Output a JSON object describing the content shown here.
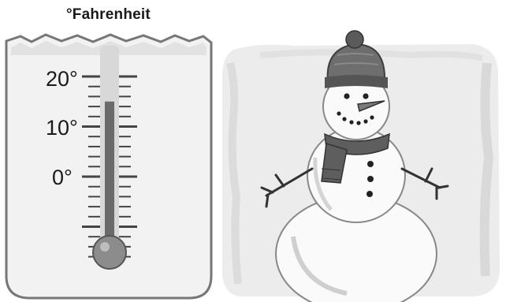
{
  "thermometer": {
    "unit_label": "°Fahrenheit",
    "scale_labels": [
      "20°",
      "10°",
      "0°"
    ],
    "scale_values": [
      20,
      10,
      0
    ],
    "reading": 15,
    "colors": {
      "card_fill": "#f2f2f2",
      "card_stroke": "#777777",
      "tube": "#d8d8d8",
      "mercury": "#6a6a6a",
      "bulb": "#8c8c8c"
    }
  },
  "snowman": {
    "icon": "snowman-in-snowy-scene",
    "colors": {
      "background": "#ececec",
      "hat": "#6e6e6e",
      "scarf": "#5e5e5e",
      "body": "#fafafa"
    }
  }
}
